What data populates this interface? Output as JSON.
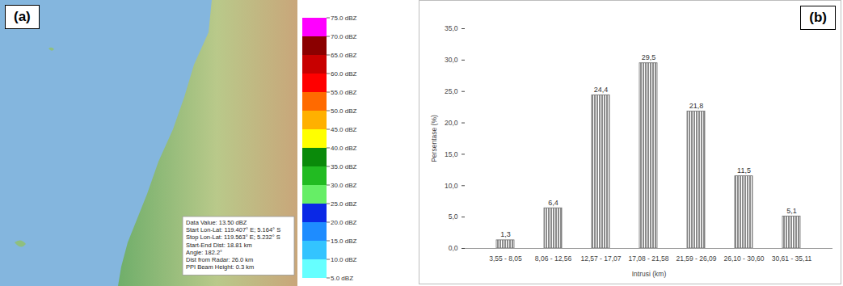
{
  "chart_data": [
    {
      "type": "map",
      "panel_label": "(a)",
      "annotation": [
        "Data Value:  13.50 dBZ",
        "Start Lon-Lat: 119.407° E; 5.164° S",
        "Stop Lon-Lat: 119.563° E; 5.232° S",
        "Start-End Dist: 18.81 km",
        "Angle: 182.2°",
        "Dist from Radar: 26.0 km",
        "PPI Beam Height: 0.3 km"
      ],
      "colorbar": {
        "range": [
          5,
          75
        ],
        "ticks": [
          {
            "value": 5,
            "label": "5.0 dBZ"
          },
          {
            "value": 10,
            "label": "10.0 dBZ"
          },
          {
            "value": 15,
            "label": "15.0 dBZ"
          },
          {
            "value": 20,
            "label": "20.0 dBZ"
          },
          {
            "value": 25,
            "label": "25.0 dBZ"
          },
          {
            "value": 30,
            "label": "30.0 dBZ"
          },
          {
            "value": 35,
            "label": "35.0 dBZ"
          },
          {
            "value": 40,
            "label": "40.0 dBZ"
          },
          {
            "value": 45,
            "label": "45.0 dBZ"
          },
          {
            "value": 50,
            "label": "50.0 dBZ"
          },
          {
            "value": 55,
            "label": "55.0 dBZ"
          },
          {
            "value": 60,
            "label": "60.0 dBZ"
          },
          {
            "value": 65,
            "label": "65.0 dBZ"
          },
          {
            "value": 70,
            "label": "70.0 dBZ"
          },
          {
            "value": 75,
            "label": "75.0 dBZ"
          }
        ],
        "colors": [
          "#66ffff",
          "#33c4ff",
          "#1e8cff",
          "#0a28e6",
          "#66ee66",
          "#22bb22",
          "#0a8a0a",
          "#ffff00",
          "#ffb000",
          "#ff6a00",
          "#ff0000",
          "#c80000",
          "#8b0000",
          "#ff00ff"
        ]
      }
    },
    {
      "type": "bar",
      "panel_label": "(b)",
      "categories": [
        "3,55 - 8,05",
        "8,06 - 12,56",
        "12,57 - 17,07",
        "17,08 - 21,58",
        "21,59 - 26,09",
        "26,10 - 30,60",
        "30,61 - 35,11"
      ],
      "values": [
        1.3,
        6.4,
        24.4,
        29.5,
        21.8,
        11.5,
        5.1
      ],
      "value_labels": [
        "1,3",
        "6,4",
        "24,4",
        "29,5",
        "21,8",
        "11,5",
        "5,1"
      ],
      "data_labels": true,
      "xlabel": "Intrusi (km)",
      "ylabel": "Persentase (%)",
      "ylim": [
        0,
        35
      ],
      "yticks": [
        {
          "value": 0,
          "label": "0,0"
        },
        {
          "value": 5,
          "label": "5,0"
        },
        {
          "value": 10,
          "label": "10,0"
        },
        {
          "value": 15,
          "label": "15,0"
        },
        {
          "value": 20,
          "label": "20,0"
        },
        {
          "value": 25,
          "label": "25,0"
        },
        {
          "value": 30,
          "label": "30,0"
        },
        {
          "value": 35,
          "label": "35,0"
        }
      ],
      "color": "#6e6e6e",
      "grid": false
    }
  ]
}
